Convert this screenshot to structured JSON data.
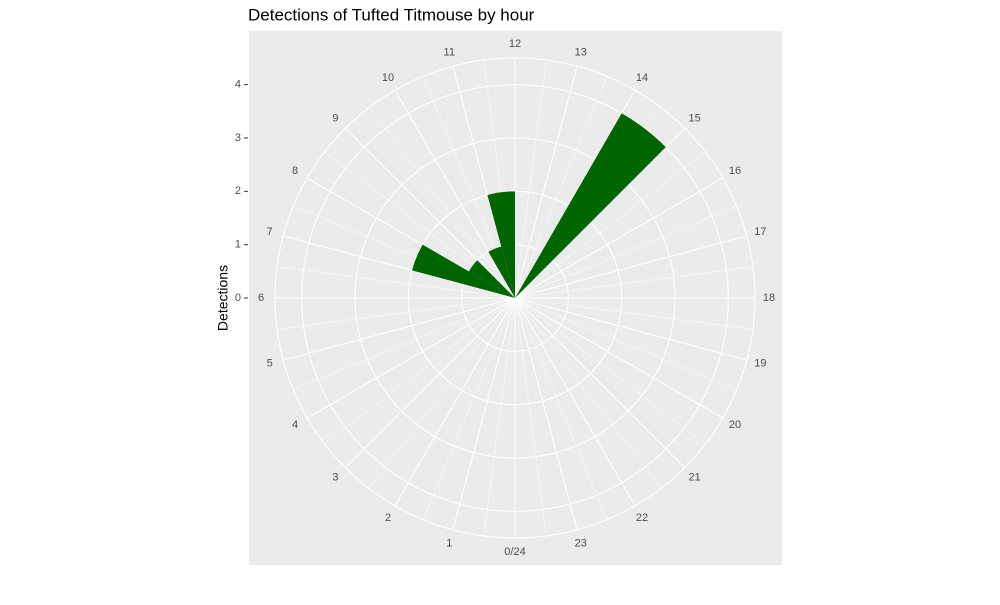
{
  "chart_data": {
    "type": "polar-histogram",
    "title": "Detections of Tufted Titmouse by hour",
    "y_label": "Detections",
    "bins": [
      0,
      1,
      2,
      3,
      4,
      5,
      6,
      7,
      8,
      9,
      10,
      11,
      12,
      13,
      14,
      15,
      16,
      17,
      18,
      19,
      20,
      21,
      22,
      23,
      24
    ],
    "values": [
      0,
      0,
      0,
      0,
      0,
      0,
      0,
      2,
      1,
      0,
      1,
      2,
      0,
      0,
      4,
      0,
      0,
      0,
      0,
      0,
      0,
      0,
      0,
      0
    ],
    "color": "#006400",
    "xlim": [
      0,
      24
    ],
    "xticks": [
      {
        "value": 0,
        "label": "0/24"
      },
      1,
      2,
      3,
      4,
      5,
      6,
      7,
      8,
      9,
      10,
      11,
      12,
      13,
      14,
      15,
      16,
      17,
      18,
      19,
      20,
      21,
      22,
      23
    ],
    "ylim": [
      0,
      4.5
    ],
    "yticks": [
      0,
      1,
      2,
      3,
      4
    ],
    "grid": true
  }
}
